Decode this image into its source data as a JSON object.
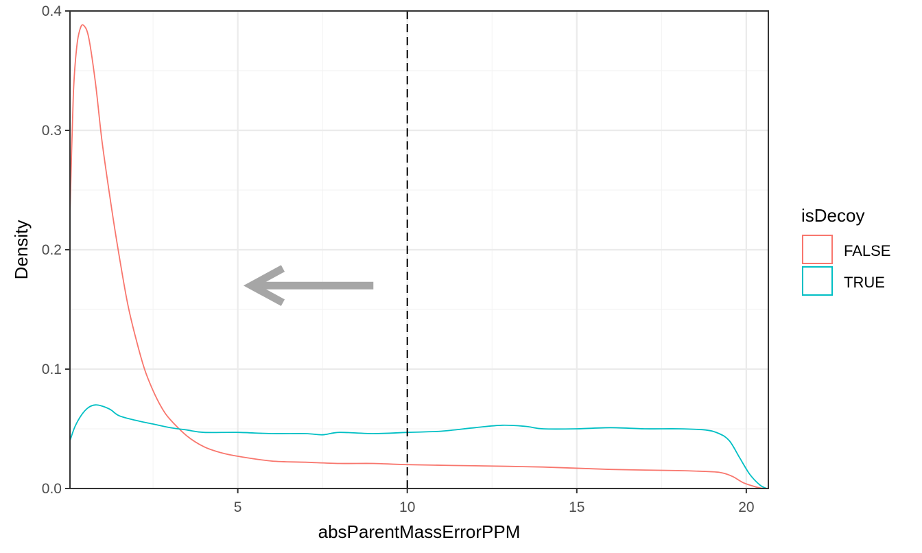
{
  "chart_data": {
    "type": "line",
    "title": "",
    "xlabel": "absParentMassErrorPPM",
    "ylabel": "Density",
    "xlim": [
      0.05,
      20.65
    ],
    "ylim": [
      0,
      0.4
    ],
    "x_ticks": [
      5,
      10,
      15,
      20
    ],
    "y_ticks": [
      0.0,
      0.1,
      0.2,
      0.3,
      0.4
    ],
    "x_tick_labels": [
      "5",
      "10",
      "15",
      "20"
    ],
    "y_tick_labels": [
      "0.0",
      "0.1",
      "0.2",
      "0.3",
      "0.4"
    ],
    "grid": true,
    "legend": {
      "title": "isDecoy",
      "position": "right",
      "entries": [
        "FALSE",
        "TRUE"
      ]
    },
    "vline": {
      "x": 10,
      "style": "dashed",
      "color": "#000000"
    },
    "annotation": {
      "type": "arrow",
      "direction": "left",
      "from": [
        9,
        0.17
      ],
      "to": [
        5.4,
        0.17
      ],
      "color": "#a6a6a6"
    },
    "series": [
      {
        "name": "FALSE",
        "color": "#F8766D",
        "x": [
          0.05,
          0.15,
          0.25,
          0.35,
          0.45,
          0.6,
          0.8,
          1.0,
          1.25,
          1.5,
          1.75,
          2.0,
          2.25,
          2.5,
          2.75,
          3.0,
          3.5,
          4.0,
          4.5,
          5.0,
          6.0,
          7.0,
          8.0,
          9.0,
          10.0,
          12.0,
          14.0,
          16.0,
          18.0,
          19.0,
          19.3,
          19.6,
          19.9,
          20.2,
          20.4,
          20.6
        ],
        "y": [
          0.23,
          0.33,
          0.37,
          0.385,
          0.388,
          0.378,
          0.34,
          0.29,
          0.24,
          0.195,
          0.155,
          0.125,
          0.1,
          0.082,
          0.068,
          0.058,
          0.044,
          0.035,
          0.03,
          0.027,
          0.023,
          0.022,
          0.021,
          0.021,
          0.02,
          0.019,
          0.018,
          0.016,
          0.015,
          0.014,
          0.013,
          0.01,
          0.005,
          0.002,
          0.0005,
          0.0
        ]
      },
      {
        "name": "TRUE",
        "color": "#00BFC4",
        "x": [
          0.05,
          0.2,
          0.4,
          0.6,
          0.8,
          1.0,
          1.25,
          1.5,
          2.0,
          2.5,
          3.0,
          3.5,
          4.0,
          5.0,
          6.0,
          7.0,
          7.5,
          8.0,
          9.0,
          10.0,
          11.0,
          12.0,
          12.8,
          13.5,
          14.0,
          15.0,
          16.0,
          17.0,
          18.0,
          18.8,
          19.2,
          19.5,
          19.8,
          20.1,
          20.4,
          20.6
        ],
        "y": [
          0.04,
          0.052,
          0.062,
          0.068,
          0.07,
          0.069,
          0.066,
          0.061,
          0.057,
          0.054,
          0.051,
          0.049,
          0.047,
          0.047,
          0.046,
          0.046,
          0.045,
          0.047,
          0.046,
          0.047,
          0.048,
          0.051,
          0.053,
          0.052,
          0.05,
          0.05,
          0.051,
          0.05,
          0.05,
          0.049,
          0.046,
          0.04,
          0.026,
          0.012,
          0.003,
          0.0
        ]
      }
    ]
  }
}
